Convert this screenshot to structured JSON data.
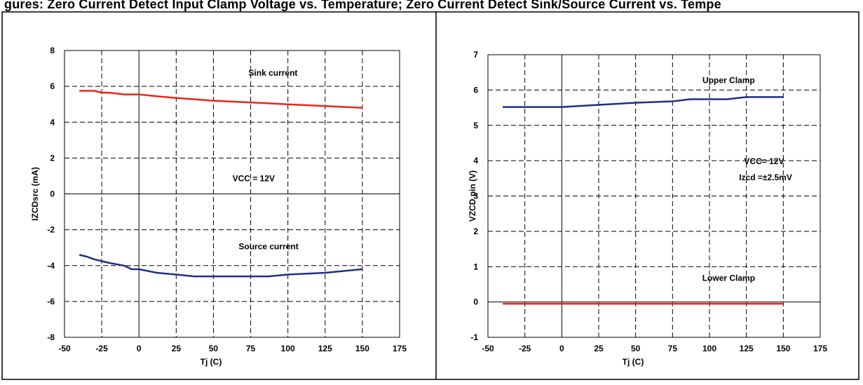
{
  "caption_fragment": "gures: Zero Current Detect Input Clamp Voltage vs. Temperature; Zero Current Detect Sink/Source Current vs. Tempe",
  "colors": {
    "sink": "#e8261c",
    "source": "#1f2f86",
    "grid": "#000000",
    "border": "#000000"
  },
  "chart_data": [
    {
      "type": "line",
      "title": "",
      "xlabel": "Tj (C)",
      "ylabel": "IZCDsrc (mA)",
      "xlim": [
        -50,
        175
      ],
      "ylim": [
        -8,
        8
      ],
      "xticks": [
        -50,
        -25,
        0,
        25,
        50,
        75,
        100,
        125,
        150,
        175
      ],
      "yticks": [
        -8,
        -6,
        -4,
        -2,
        0,
        2,
        4,
        6,
        8
      ],
      "grid": true,
      "annotations": [
        {
          "text": "Sink current",
          "x": 90,
          "y": 6.6
        },
        {
          "text": "VCC = 12V",
          "x": 77,
          "y": 0.7
        },
        {
          "text": "Source current",
          "x": 87,
          "y": -3.1
        }
      ],
      "series": [
        {
          "name": "",
          "color": "#e8261c",
          "x": [
            -40,
            -30,
            -25,
            -20,
            -15,
            -10,
            0,
            12,
            25,
            50,
            75,
            100,
            125,
            150
          ],
          "y": [
            5.75,
            5.75,
            5.65,
            5.65,
            5.6,
            5.55,
            5.55,
            5.45,
            5.35,
            5.2,
            5.1,
            5.0,
            4.9,
            4.8
          ]
        },
        {
          "name": "",
          "color": "#1f2f86",
          "x": [
            -40,
            -35,
            -30,
            -20,
            -10,
            -5,
            0,
            12,
            25,
            37,
            50,
            75,
            87,
            100,
            125,
            150
          ],
          "y": [
            -3.4,
            -3.5,
            -3.65,
            -3.85,
            -4.0,
            -4.2,
            -4.2,
            -4.4,
            -4.5,
            -4.6,
            -4.6,
            -4.6,
            -4.6,
            -4.5,
            -4.4,
            -4.2
          ]
        }
      ]
    },
    {
      "type": "line",
      "title": "",
      "xlabel": "Tj (C)",
      "ylabel": "VZCD pin (V)",
      "xlim": [
        -50,
        175
      ],
      "ylim": [
        -1,
        7
      ],
      "xticks": [
        -50,
        -25,
        0,
        25,
        50,
        75,
        100,
        125,
        150,
        175
      ],
      "yticks": [
        -1,
        0,
        1,
        2,
        3,
        4,
        5,
        6,
        7
      ],
      "grid": true,
      "annotations": [
        {
          "text": "Upper Clamp",
          "x": 113,
          "y": 6.2
        },
        {
          "text": "VCC= 12V",
          "x": 137,
          "y": 3.9
        },
        {
          "text": "Izcd =±2.5mV",
          "x": 138,
          "y": 3.45
        },
        {
          "text": "Lower Clamp",
          "x": 113,
          "y": 0.6
        }
      ],
      "series": [
        {
          "name": "",
          "color": "#1f2f86",
          "x": [
            -40,
            -25,
            0,
            25,
            50,
            75,
            87,
            100,
            112,
            125,
            150
          ],
          "y": [
            5.52,
            5.52,
            5.52,
            5.58,
            5.64,
            5.68,
            5.74,
            5.74,
            5.74,
            5.8,
            5.8
          ]
        },
        {
          "name": "",
          "color": "#e8261c",
          "x": [
            -40,
            150
          ],
          "y": [
            -0.05,
            -0.05
          ]
        }
      ]
    }
  ]
}
